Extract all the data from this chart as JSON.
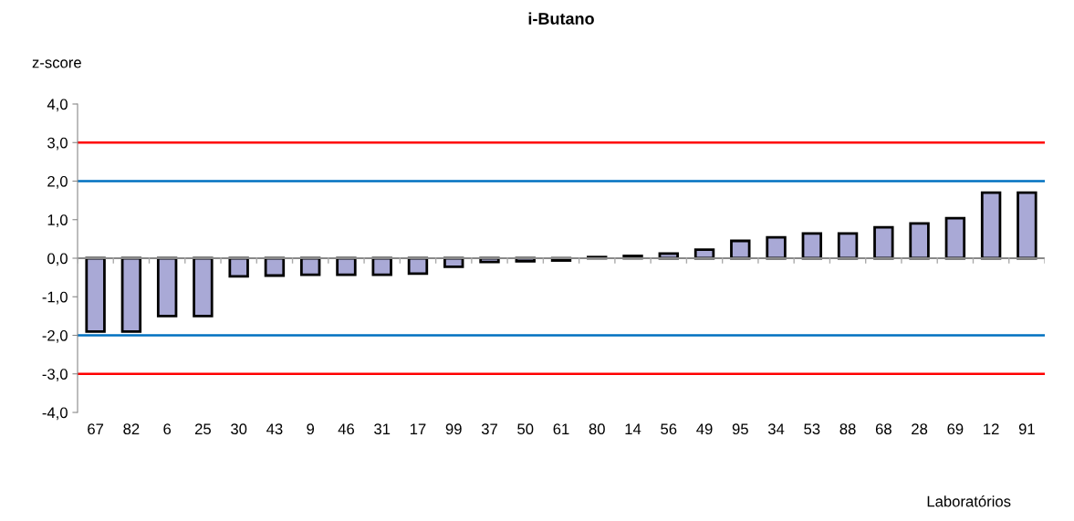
{
  "chart_data": {
    "type": "bar",
    "title": "i-Butano",
    "ylabel": "z-score",
    "xlabel": "Laboratórios",
    "categories": [
      "67",
      "82",
      "6",
      "25",
      "30",
      "43",
      "9",
      "46",
      "31",
      "17",
      "99",
      "37",
      "50",
      "61",
      "80",
      "14",
      "56",
      "49",
      "95",
      "34",
      "53",
      "88",
      "68",
      "28",
      "69",
      "12",
      "91"
    ],
    "values": [
      -1.9,
      -1.9,
      -1.5,
      -1.5,
      -0.47,
      -0.45,
      -0.43,
      -0.43,
      -0.43,
      -0.4,
      -0.22,
      -0.1,
      -0.08,
      -0.06,
      0.03,
      0.06,
      0.12,
      0.22,
      0.45,
      0.54,
      0.64,
      0.64,
      0.8,
      0.9,
      1.04,
      1.7,
      1.7
    ],
    "color": "#a9a9d6",
    "ylim": [
      -4,
      4
    ],
    "yticks": [
      {
        "value": -4,
        "label": "-4,0"
      },
      {
        "value": -3,
        "label": "-3,0"
      },
      {
        "value": -2,
        "label": "-2,0"
      },
      {
        "value": -1,
        "label": "-1,0"
      },
      {
        "value": 0,
        "label": "0,0"
      },
      {
        "value": 1,
        "label": "1,0"
      },
      {
        "value": 2,
        "label": "2,0"
      },
      {
        "value": 3,
        "label": "3,0"
      },
      {
        "value": 4,
        "label": "4,0"
      }
    ],
    "ref_lines": [
      {
        "axis": "y",
        "value": 3,
        "color": "#ff0000"
      },
      {
        "axis": "y",
        "value": 2,
        "color": "#0070c0"
      },
      {
        "axis": "y",
        "value": -2,
        "color": "#0070c0"
      },
      {
        "axis": "y",
        "value": -3,
        "color": "#ff0000"
      }
    ],
    "grid": false,
    "legend": false
  }
}
